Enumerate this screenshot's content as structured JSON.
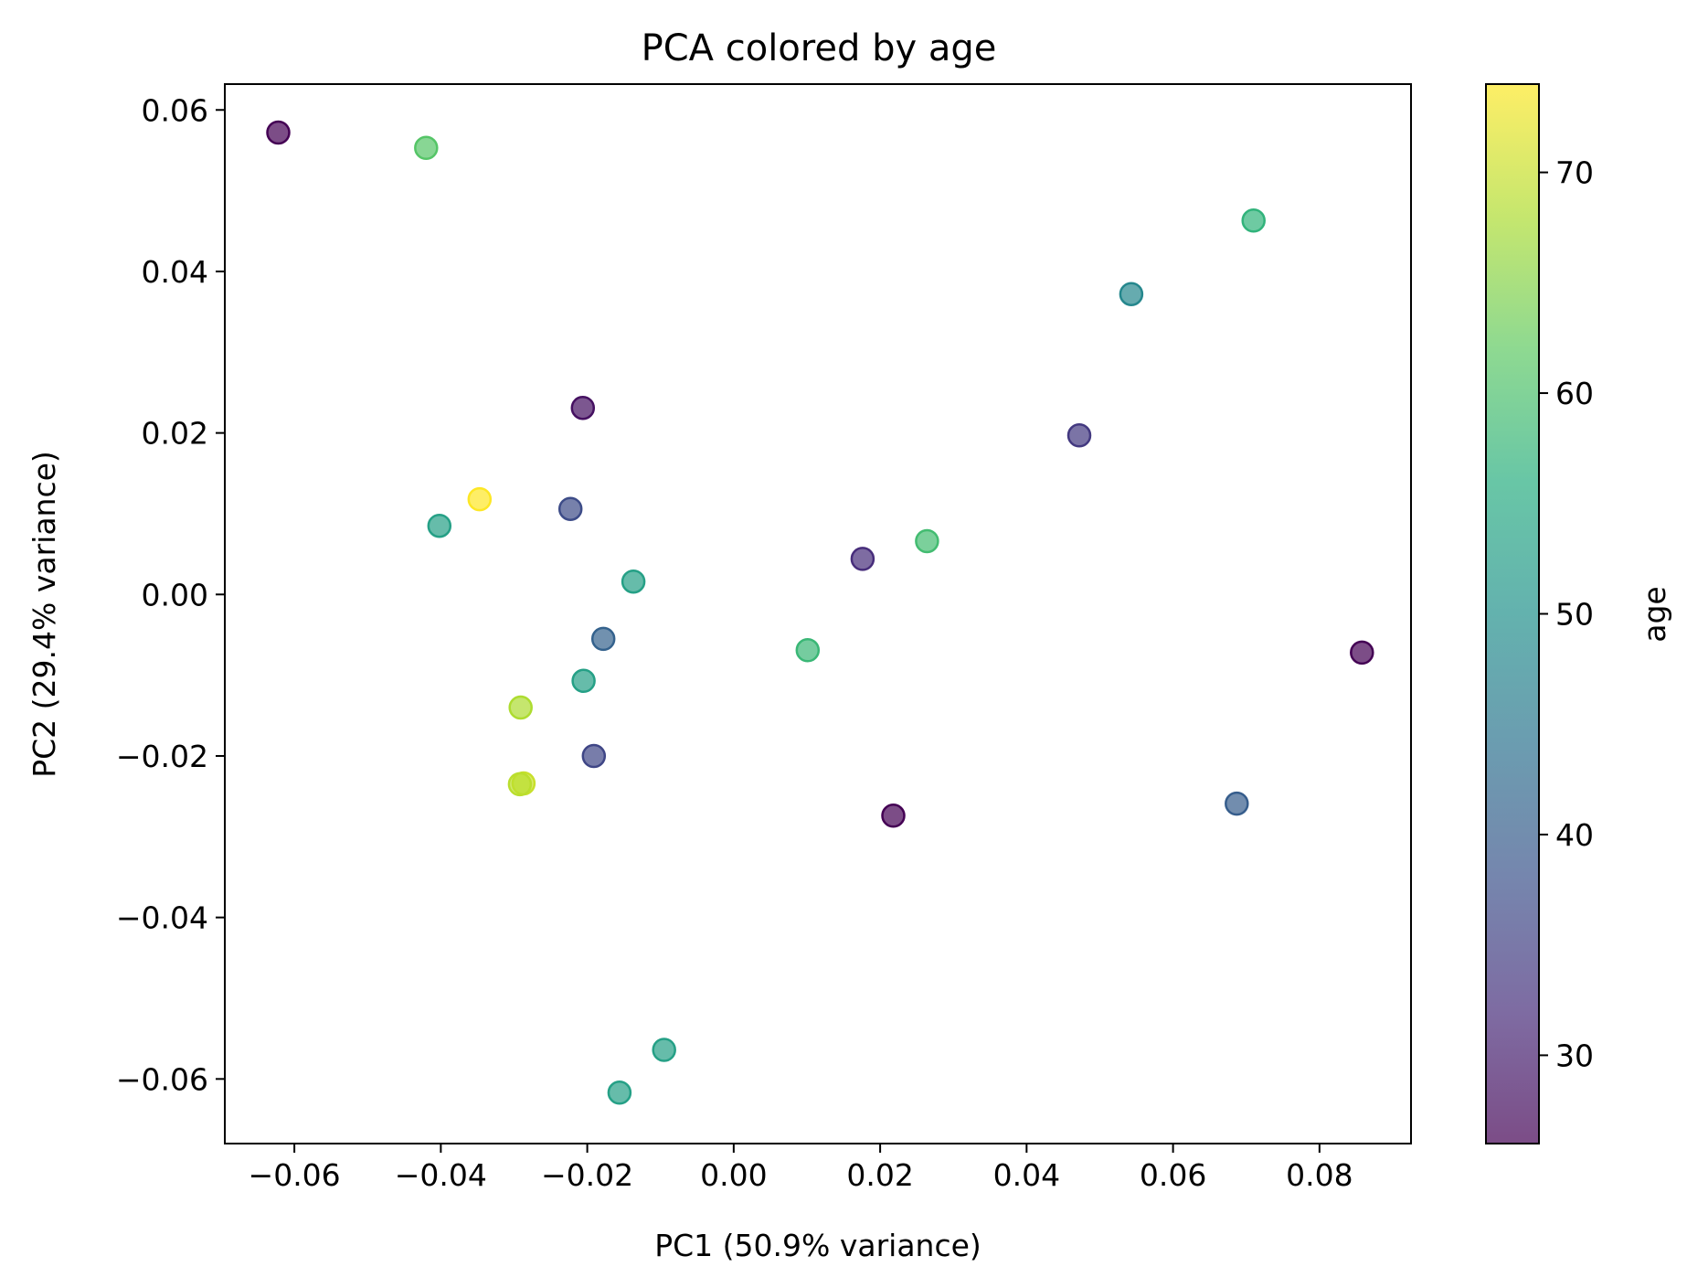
{
  "chart_data": {
    "type": "scatter",
    "title": "PCA colored by age",
    "xlabel": "PC1 (50.9% variance)",
    "ylabel": "PC2 (29.4% variance)",
    "xlim": [
      -0.0695,
      0.0925
    ],
    "ylim": [
      -0.068,
      0.0632
    ],
    "xticks": [
      -0.06,
      -0.04,
      -0.02,
      0.0,
      0.02,
      0.04,
      0.06,
      0.08
    ],
    "xtick_labels": [
      "−0.06",
      "−0.04",
      "−0.02",
      "0.00",
      "0.02",
      "0.04",
      "0.06",
      "0.08"
    ],
    "yticks": [
      -0.06,
      -0.04,
      -0.02,
      0.0,
      0.02,
      0.04,
      0.06
    ],
    "ytick_labels": [
      "−0.06",
      "−0.04",
      "−0.02",
      "0.00",
      "0.02",
      "0.04",
      "0.06"
    ],
    "grid": false,
    "colormap": "viridis",
    "colorbar": {
      "label": "age",
      "range": [
        26,
        74
      ],
      "ticks": [
        30,
        40,
        50,
        60,
        70
      ],
      "tick_labels": [
        "30",
        "40",
        "50",
        "60",
        "70"
      ]
    },
    "points": [
      {
        "x": -0.0622,
        "y": 0.0572,
        "age": 26
      },
      {
        "x": -0.042,
        "y": 0.0553,
        "age": 61
      },
      {
        "x": 0.071,
        "y": 0.0463,
        "age": 57
      },
      {
        "x": 0.0543,
        "y": 0.0372,
        "age": 48
      },
      {
        "x": -0.0206,
        "y": 0.0231,
        "age": 28
      },
      {
        "x": 0.0472,
        "y": 0.0197,
        "age": 34
      },
      {
        "x": -0.0347,
        "y": 0.0118,
        "age": 74
      },
      {
        "x": -0.0223,
        "y": 0.0106,
        "age": 37
      },
      {
        "x": -0.0402,
        "y": 0.0085,
        "age": 53
      },
      {
        "x": 0.0264,
        "y": 0.0066,
        "age": 59
      },
      {
        "x": 0.0176,
        "y": 0.0044,
        "age": 32
      },
      {
        "x": -0.0137,
        "y": 0.0016,
        "age": 53
      },
      {
        "x": -0.0178,
        "y": -0.0055,
        "age": 41
      },
      {
        "x": 0.0101,
        "y": -0.0069,
        "age": 58
      },
      {
        "x": 0.0858,
        "y": -0.0072,
        "age": 26
      },
      {
        "x": -0.0205,
        "y": -0.0107,
        "age": 53
      },
      {
        "x": -0.0291,
        "y": -0.014,
        "age": 68
      },
      {
        "x": -0.0191,
        "y": -0.02,
        "age": 36
      },
      {
        "x": -0.0287,
        "y": -0.0234,
        "age": 70
      },
      {
        "x": -0.0292,
        "y": -0.0235,
        "age": 69
      },
      {
        "x": 0.0687,
        "y": -0.0259,
        "age": 40
      },
      {
        "x": 0.0218,
        "y": -0.0274,
        "age": 26
      },
      {
        "x": -0.0095,
        "y": -0.0564,
        "age": 53
      },
      {
        "x": -0.0156,
        "y": -0.0617,
        "age": 53
      }
    ]
  }
}
